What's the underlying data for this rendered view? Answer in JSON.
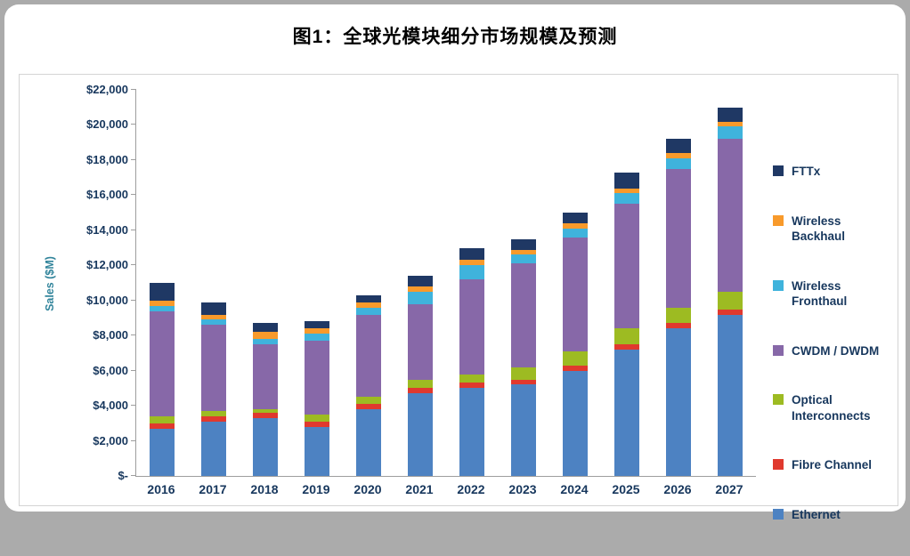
{
  "page": {
    "title": "图1：全球光模块细分市场规模及预测"
  },
  "chart_data": {
    "type": "bar",
    "stacked": true,
    "title": "图1：全球光模块细分市场规模及预测",
    "xlabel": "",
    "ylabel": "Sales ($M)",
    "ylim": [
      0,
      22000
    ],
    "ytick_step": 2000,
    "yticks": [
      "$-",
      "$2,000",
      "$4,000",
      "$6,000",
      "$8,000",
      "$10,000",
      "$12,000",
      "$14,000",
      "$16,000",
      "$18,000",
      "$20,000",
      "$22,000"
    ],
    "grid": false,
    "legend_position": "right",
    "categories": [
      "2016",
      "2017",
      "2018",
      "2019",
      "2020",
      "2021",
      "2022",
      "2023",
      "2024",
      "2025",
      "2026",
      "2027"
    ],
    "series": [
      {
        "name": "Ethernet",
        "color": "#4D82C2",
        "values": [
          2700,
          3100,
          3300,
          2800,
          3800,
          4700,
          5000,
          5200,
          6000,
          7200,
          8400,
          9200
        ]
      },
      {
        "name": "Fibre Channel",
        "color": "#E0392E",
        "values": [
          300,
          300,
          300,
          300,
          300,
          300,
          300,
          300,
          300,
          300,
          300,
          300
        ]
      },
      {
        "name": "Optical Interconnects",
        "color": "#9DBB22",
        "values": [
          400,
          300,
          200,
          400,
          400,
          500,
          500,
          700,
          800,
          900,
          900,
          1000
        ]
      },
      {
        "name": "CWDM / DWDM",
        "color": "#8768A8",
        "values": [
          6000,
          4900,
          3700,
          4200,
          4700,
          4300,
          5400,
          5900,
          6500,
          7100,
          7900,
          8700
        ]
      },
      {
        "name": "Wireless Fronthaul",
        "color": "#3FB3DC",
        "values": [
          300,
          300,
          300,
          400,
          400,
          700,
          800,
          500,
          500,
          600,
          600,
          700
        ]
      },
      {
        "name": "Wireless Backhaul",
        "color": "#F89A2B",
        "values": [
          300,
          300,
          400,
          300,
          300,
          300,
          300,
          300,
          300,
          300,
          300,
          300
        ]
      },
      {
        "name": "FTTx",
        "color": "#1F3864",
        "values": [
          1000,
          700,
          500,
          400,
          400,
          600,
          700,
          600,
          600,
          900,
          800,
          800
        ]
      }
    ],
    "totals": [
      11000,
      9900,
      8700,
      8800,
      10300,
      11400,
      13000,
      13500,
      15000,
      17300,
      19200,
      21000
    ]
  }
}
